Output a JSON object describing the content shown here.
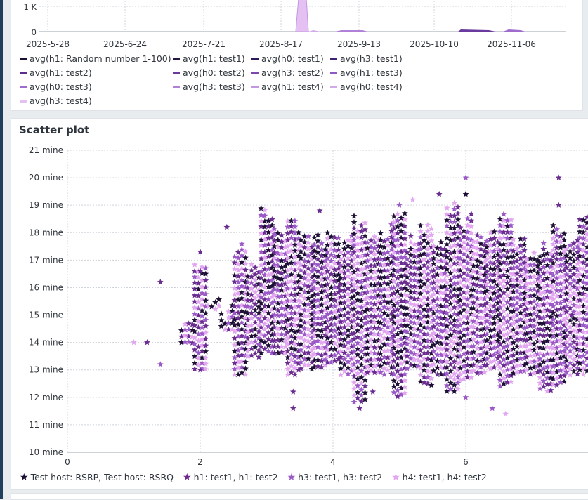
{
  "colors": {
    "background": "#e9ecef",
    "panel": "#ffffff",
    "grid": "#cfd4da",
    "series": [
      "#1e1035",
      "#6a2c8f",
      "#9b59c7",
      "#e3a6f0"
    ]
  },
  "top_panel": {
    "y_ticks": [
      "1 K",
      "0"
    ],
    "x_ticks": [
      "2025-5-28",
      "2025-6-24",
      "2025-7-21",
      "2025-8-17",
      "2025-9-13",
      "2025-10-10",
      "2025-11-06"
    ],
    "legend": [
      {
        "label": "avg(h1: Random number 1-100)",
        "color": "#1e1035"
      },
      {
        "label": "avg(h1: test1)",
        "color": "#241645"
      },
      {
        "label": "avg(h0: test1)",
        "color": "#2e1a5a"
      },
      {
        "label": "avg(h3: test1)",
        "color": "#3f2378"
      },
      {
        "label": "avg(h1: test2)",
        "color": "#5b2e8e"
      },
      {
        "label": "avg(h0: test2)",
        "color": "#6a3a9e"
      },
      {
        "label": "avg(h3: test2)",
        "color": "#7c48b0"
      },
      {
        "label": "avg(h1: test3)",
        "color": "#8e59c0"
      },
      {
        "label": "avg(h0: test3)",
        "color": "#9f6ccd"
      },
      {
        "label": "avg(h3: test3)",
        "color": "#b181d8"
      },
      {
        "label": "avg(h1: test4)",
        "color": "#c497e2"
      },
      {
        "label": "avg(h0: test4)",
        "color": "#d2aaeb"
      },
      {
        "label": "avg(h3: test4)",
        "color": "#e4c0f3"
      }
    ],
    "chart_data": {
      "type": "area",
      "x": [
        "2025-5-28",
        "2025-6-24",
        "2025-7-21",
        "2025-8-17",
        "2025-9-13",
        "2025-10-10",
        "2025-11-06"
      ],
      "ylim": [
        0,
        1000
      ],
      "note": ""
    }
  },
  "scatter": {
    "title": "Scatter plot",
    "legend": [
      {
        "label": "Test host: RSRP, Test host: RSRQ",
        "color": "#1e1035"
      },
      {
        "label": "h1: test1, h1: test2",
        "color": "#6a2c8f"
      },
      {
        "label": "h3: test1, h3: test2",
        "color": "#9b59c7"
      },
      {
        "label": "h4: test1, h4: test2",
        "color": "#e3a6f0"
      }
    ],
    "y_tick_labels": [
      "21 mine",
      "20 mine",
      "19 mine",
      "18 mine",
      "17 mine",
      "16 mine",
      "15 mine",
      "14 mine",
      "13 mine",
      "12 mine",
      "11 mine",
      "10 mine"
    ],
    "x_tick_labels": [
      "0",
      "2",
      "4",
      "6"
    ]
  },
  "chart_data": {
    "type": "scatter",
    "title": "Scatter plot",
    "xlim": [
      0,
      7.8
    ],
    "ylim": [
      10,
      21
    ],
    "y_unit": "mine",
    "x_ticks": [
      0,
      2,
      4,
      6
    ],
    "y_ticks": [
      10,
      11,
      12,
      13,
      14,
      15,
      16,
      17,
      18,
      19,
      20,
      21
    ],
    "grid": true,
    "legend_position": "bottom",
    "series": [
      {
        "name": "Test host: RSRP, Test host: RSRQ",
        "x_min": 1.0,
        "x_max": 7.8,
        "y_min": 11.5,
        "y_max": 20.0
      },
      {
        "name": "h1: test1, h1: test2",
        "x_min": 1.0,
        "x_max": 7.8,
        "y_min": 11.5,
        "y_max": 20.0
      },
      {
        "name": "h3: test1, h3: test2",
        "x_min": 1.0,
        "x_max": 7.8,
        "y_min": 11.5,
        "y_max": 20.0
      },
      {
        "name": "h4: test1, h4: test2",
        "x_min": 1.0,
        "x_max": 7.8,
        "y_min": 11.3,
        "y_max": 20.0
      }
    ],
    "points": [
      {
        "x": 1.0,
        "y": 14.0,
        "s": 3
      },
      {
        "x": 1.2,
        "y": 14.0,
        "s": 1
      },
      {
        "x": 1.4,
        "y": 13.2,
        "s": 2
      },
      {
        "x": 1.4,
        "y": 16.2,
        "s": 1
      },
      {
        "x": 2.0,
        "y": 13.0,
        "s": 1
      },
      {
        "x": 2.0,
        "y": 17.3,
        "s": 1
      },
      {
        "x": 2.0,
        "y": 16.6,
        "s": 1
      },
      {
        "x": 2.4,
        "y": 18.2,
        "s": 1
      },
      {
        "x": 3.4,
        "y": 11.6,
        "s": 1
      },
      {
        "x": 3.4,
        "y": 12.2,
        "s": 1
      },
      {
        "x": 3.8,
        "y": 18.8,
        "s": 1
      },
      {
        "x": 4.4,
        "y": 11.6,
        "s": 1
      },
      {
        "x": 4.6,
        "y": 12.2,
        "s": 1
      },
      {
        "x": 6.0,
        "y": 20.0,
        "s": 2
      },
      {
        "x": 6.0,
        "y": 19.4,
        "s": 0
      },
      {
        "x": 6.0,
        "y": 12.0,
        "s": 2
      },
      {
        "x": 6.4,
        "y": 11.6,
        "s": 2
      },
      {
        "x": 6.6,
        "y": 11.4,
        "s": 3
      },
      {
        "x": 7.4,
        "y": 20.0,
        "s": 1
      },
      {
        "x": 7.4,
        "y": 19.0,
        "s": 1
      },
      {
        "x": 7.6,
        "y": 15.0,
        "s": 1
      },
      {
        "x": 5.0,
        "y": 19.0,
        "s": 2
      },
      {
        "x": 5.2,
        "y": 19.2,
        "s": 3
      },
      {
        "x": 5.6,
        "y": 19.4,
        "s": 1
      }
    ],
    "column_bands": [
      {
        "x": 1.8,
        "lo": 13.9,
        "hi": 15.0
      },
      {
        "x": 2.0,
        "lo": 13.0,
        "hi": 17.3
      },
      {
        "x": 2.2,
        "lo": 15.2,
        "hi": 15.8
      },
      {
        "x": 2.4,
        "lo": 14.4,
        "hi": 15.4
      },
      {
        "x": 2.6,
        "lo": 12.8,
        "hi": 17.6
      },
      {
        "x": 2.8,
        "lo": 13.4,
        "hi": 17.0
      },
      {
        "x": 3.0,
        "lo": 13.6,
        "hi": 19.0
      },
      {
        "x": 3.2,
        "lo": 13.6,
        "hi": 18.4
      },
      {
        "x": 3.4,
        "lo": 12.8,
        "hi": 18.6
      },
      {
        "x": 3.6,
        "lo": 13.0,
        "hi": 18.0
      },
      {
        "x": 3.8,
        "lo": 13.0,
        "hi": 18.0
      },
      {
        "x": 4.0,
        "lo": 13.2,
        "hi": 18.4
      },
      {
        "x": 4.2,
        "lo": 12.8,
        "hi": 18.0
      },
      {
        "x": 4.4,
        "lo": 11.8,
        "hi": 18.8
      },
      {
        "x": 4.6,
        "lo": 12.8,
        "hi": 18.0
      },
      {
        "x": 4.8,
        "lo": 12.8,
        "hi": 18.4
      },
      {
        "x": 5.0,
        "lo": 12.0,
        "hi": 19.0
      },
      {
        "x": 5.2,
        "lo": 13.0,
        "hi": 18.0
      },
      {
        "x": 5.4,
        "lo": 12.4,
        "hi": 18.6
      },
      {
        "x": 5.6,
        "lo": 12.8,
        "hi": 18.0
      },
      {
        "x": 5.8,
        "lo": 12.2,
        "hi": 19.2
      },
      {
        "x": 6.0,
        "lo": 12.6,
        "hi": 18.8
      },
      {
        "x": 6.2,
        "lo": 12.8,
        "hi": 18.0
      },
      {
        "x": 6.4,
        "lo": 13.0,
        "hi": 18.2
      },
      {
        "x": 6.6,
        "lo": 12.4,
        "hi": 18.8
      },
      {
        "x": 6.8,
        "lo": 12.8,
        "hi": 18.0
      },
      {
        "x": 7.0,
        "lo": 12.8,
        "hi": 17.6
      },
      {
        "x": 7.2,
        "lo": 12.2,
        "hi": 17.8
      },
      {
        "x": 7.4,
        "lo": 12.4,
        "hi": 18.4
      },
      {
        "x": 7.6,
        "lo": 12.8,
        "hi": 18.0
      },
      {
        "x": 7.8,
        "lo": 12.8,
        "hi": 19.0
      }
    ]
  }
}
